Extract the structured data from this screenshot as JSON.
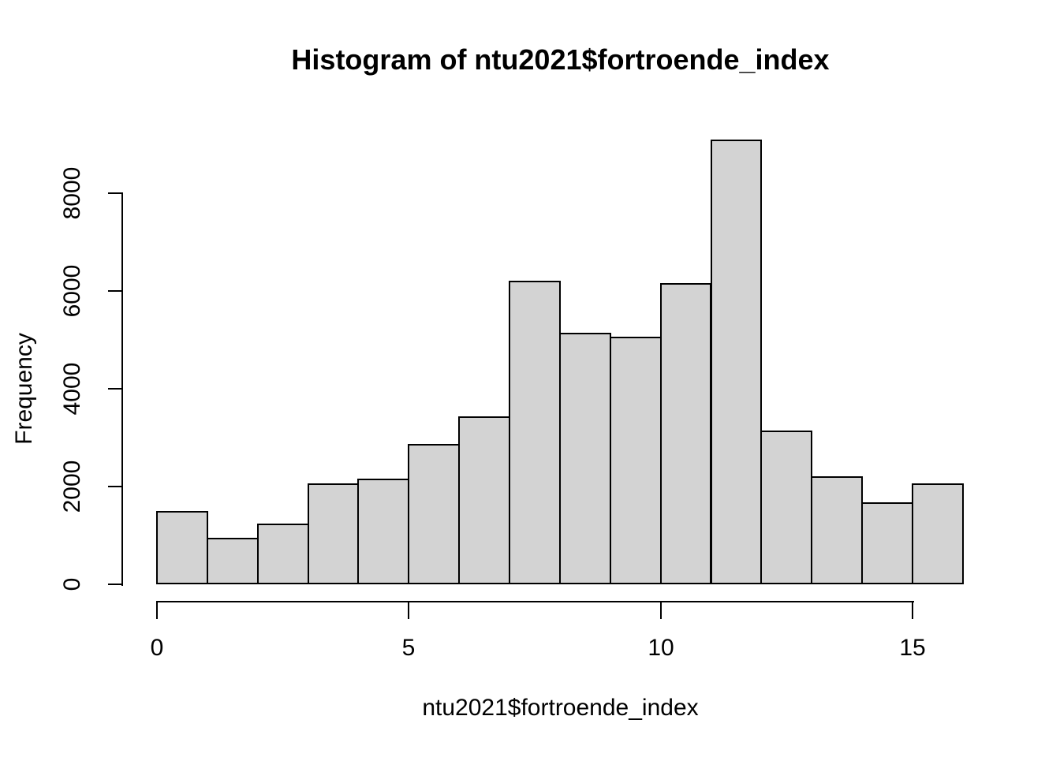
{
  "window": {
    "kind": "r-plot-device",
    "background": "#FFFFFF"
  },
  "chart_data": {
    "type": "bar",
    "subtype": "histogram",
    "title": "Histogram of ntu2021$fortroende_index",
    "xlabel": "ntu2021$fortroende_index",
    "ylabel": "Frequency",
    "bin_edges": [
      0,
      1,
      2,
      3,
      4,
      5,
      6,
      7,
      8,
      9,
      10,
      11,
      12,
      13,
      14,
      15,
      16
    ],
    "values": [
      1500,
      950,
      1240,
      2070,
      2160,
      2870,
      3430,
      6210,
      5140,
      5060,
      6160,
      9090,
      3150,
      2210,
      1680,
      2070
    ],
    "x_ticks": [
      0,
      5,
      10,
      15
    ],
    "y_ticks": [
      0,
      2000,
      4000,
      6000,
      8000
    ],
    "xlim": [
      0,
      16
    ],
    "ylim": [
      0,
      9350
    ],
    "grid": false,
    "legend_position": "none",
    "colors": {
      "bar_fill": "#D3D3D3",
      "bar_border": "#000000",
      "axis": "#000000",
      "text": "#000000",
      "background": "#FFFFFF"
    }
  }
}
